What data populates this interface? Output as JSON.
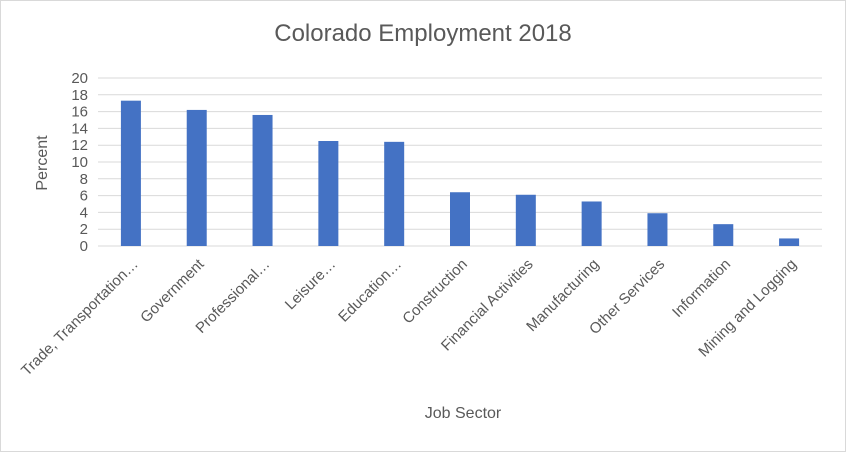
{
  "chart_data": {
    "type": "bar",
    "title": "Colorado Employment 2018",
    "xlabel": "Job Sector",
    "ylabel": "Percent",
    "ylim": [
      0,
      20
    ],
    "ytick_step": 2,
    "grid": true,
    "legend": "none",
    "bar_color": "#4472C4",
    "grid_color": "#d9d9d9",
    "categories": [
      "Trade, Transportation…",
      "Government",
      "Professional…",
      "Leisure…",
      "Education…",
      "Construction",
      "Financial Activities",
      "Manufacturing",
      "Other Services",
      "Information",
      "Mining and Logging"
    ],
    "values": [
      17.3,
      16.2,
      15.6,
      12.5,
      12.4,
      6.4,
      6.1,
      5.3,
      3.9,
      2.6,
      0.9
    ]
  }
}
